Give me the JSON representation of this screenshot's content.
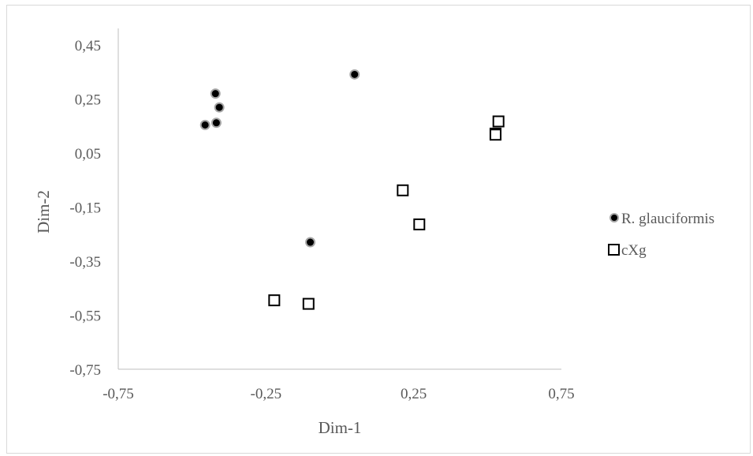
{
  "chart_data": {
    "type": "scatter",
    "xlabel": "Dim-1",
    "ylabel": "Dim-2",
    "xlim": [
      -0.75,
      0.75
    ],
    "ylim": [
      -0.75,
      0.45
    ],
    "x_ticks": [
      "-0,75",
      "-0,25",
      "0,25",
      "0,75"
    ],
    "x_tick_values": [
      -0.75,
      -0.25,
      0.25,
      0.75
    ],
    "y_ticks": [
      "0,45",
      "0,25",
      "0,05",
      "-0,15",
      "-0,35",
      "-0,55",
      "-0,75"
    ],
    "y_tick_values": [
      0.45,
      0.25,
      0.05,
      -0.15,
      -0.35,
      -0.55,
      -0.75
    ],
    "grid": false,
    "legend_position": "right",
    "series": [
      {
        "name": "R. glauciformis",
        "marker": "filled-circle",
        "color": "#000000",
        "edge_color": "#a6a6a6",
        "points": [
          {
            "x": 0.05,
            "y": 0.341
          },
          {
            "x": -0.421,
            "y": 0.27
          },
          {
            "x": -0.408,
            "y": 0.219
          },
          {
            "x": -0.418,
            "y": 0.162
          },
          {
            "x": -0.456,
            "y": 0.154
          },
          {
            "x": -0.1,
            "y": -0.28
          }
        ]
      },
      {
        "name": "cXg",
        "marker": "open-square",
        "color": "#000000",
        "points": [
          {
            "x": 0.537,
            "y": 0.167
          },
          {
            "x": 0.527,
            "y": 0.122
          },
          {
            "x": 0.527,
            "y": 0.118
          },
          {
            "x": 0.213,
            "y": -0.088
          },
          {
            "x": 0.269,
            "y": -0.214
          },
          {
            "x": -0.222,
            "y": -0.495
          },
          {
            "x": -0.106,
            "y": -0.508
          }
        ]
      }
    ]
  }
}
